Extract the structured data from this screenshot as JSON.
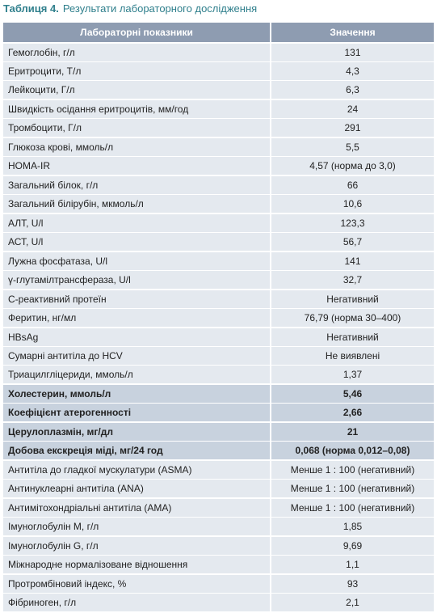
{
  "header": {
    "label": "Таблиця 4.",
    "title": "Результати лабораторного дослідження"
  },
  "table": {
    "columns": [
      "Лабораторні показники",
      "Значення"
    ],
    "rows": [
      {
        "cells": [
          "Гемоглобін, г/л",
          "131"
        ]
      },
      {
        "cells": [
          "Еритроцити, Т/л",
          "4,3"
        ]
      },
      {
        "cells": [
          "Лейкоцити, Г/л",
          "6,3"
        ]
      },
      {
        "cells": [
          "Швидкість осідання еритроцитів, мм/год",
          "24"
        ]
      },
      {
        "cells": [
          "Тромбоцити, Г/л",
          "291"
        ]
      },
      {
        "cells": [
          "Глюкоза крові, ммоль/л",
          "5,5"
        ]
      },
      {
        "cells": [
          "HOMA-IR",
          "4,57 (норма до 3,0)"
        ]
      },
      {
        "cells": [
          "Загальний білок, г/л",
          "66"
        ]
      },
      {
        "cells": [
          "Загальний білірубін, мкмоль/л",
          "10,6"
        ]
      },
      {
        "cells": [
          "АЛТ, U/l",
          "123,3"
        ]
      },
      {
        "cells": [
          "АСТ, U/l",
          "56,7"
        ]
      },
      {
        "cells": [
          "Лужна фосфатаза, U/l",
          "141"
        ]
      },
      {
        "cells": [
          "γ-глутамілтрансфераза, U/l",
          "32,7"
        ]
      },
      {
        "cells": [
          "С-реактивний протеїн",
          "Негативний"
        ]
      },
      {
        "cells": [
          "Феритин, нг/мл",
          "76,79 (норма 30–400)"
        ]
      },
      {
        "cells": [
          "HBsAg",
          "Негативний"
        ]
      },
      {
        "cells": [
          "Сумарні антитіла до HCV",
          "Не виявлені"
        ]
      },
      {
        "cells": [
          "Триацилгліцериди, ммоль/л",
          "1,37"
        ]
      },
      {
        "cells": [
          "Холестерин, ммоль/л",
          "5,46"
        ],
        "emphasis": true
      },
      {
        "cells": [
          "Коефіцієнт атерогенності",
          "2,66"
        ],
        "emphasis": true
      },
      {
        "cells": [
          "Церулоплазмін, мг/дл",
          "21"
        ],
        "emphasis": true
      },
      {
        "cells": [
          "Добова екскреція міді, мг/24 год",
          "0,068 (норма 0,012–0,08)"
        ],
        "emphasis": true
      },
      {
        "cells": [
          "Антитіла до гладкої мускулатури (ASMA)",
          "Менше 1 : 100 (негативний)"
        ]
      },
      {
        "cells": [
          "Антинуклеарні антитіла (ANA)",
          "Менше 1 : 100 (негативний)"
        ]
      },
      {
        "cells": [
          "Антимітохондріальні антитіла (AMA)",
          "Менше 1 : 100 (негативний)"
        ]
      },
      {
        "cells": [
          "Імуноглобулін М, г/л",
          "1,85"
        ]
      },
      {
        "cells": [
          "Імуноглобулін G, г/л",
          "9,69"
        ]
      },
      {
        "cells": [
          "Міжнародне нормалізоване відношення",
          "1,1"
        ]
      },
      {
        "cells": [
          "Протромбіновий індекс, %",
          "93"
        ]
      },
      {
        "cells": [
          "Фібриноген, г/л",
          "2,1"
        ]
      }
    ]
  }
}
